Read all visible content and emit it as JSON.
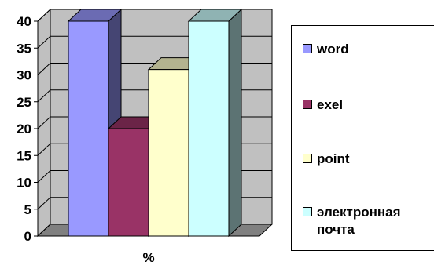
{
  "chart_data": {
    "type": "bar",
    "style": "3d-column",
    "categories": [
      "%"
    ],
    "xlabel": "%",
    "ylim": [
      0,
      40
    ],
    "yticks": [
      0,
      5,
      10,
      15,
      20,
      25,
      30,
      35,
      40
    ],
    "grid": true,
    "legend_position": "right",
    "series": [
      {
        "name": "word",
        "values": [
          40
        ],
        "color": "#9999ff"
      },
      {
        "name": "exel",
        "values": [
          20
        ],
        "color": "#993366"
      },
      {
        "name": "point",
        "values": [
          31
        ],
        "color": "#ffffcc"
      },
      {
        "name": "электронная почта",
        "values": [
          40
        ],
        "color": "#ccffff"
      }
    ]
  },
  "legend": {
    "items": [
      {
        "line1": "word",
        "line2": ""
      },
      {
        "line1": "exel",
        "line2": ""
      },
      {
        "line1": "point",
        "line2": ""
      },
      {
        "line1": "электронная",
        "line2": "почта"
      }
    ]
  },
  "colors": {
    "wall": "#c0c0c0",
    "floor": "#808080",
    "grid": "#000000"
  }
}
